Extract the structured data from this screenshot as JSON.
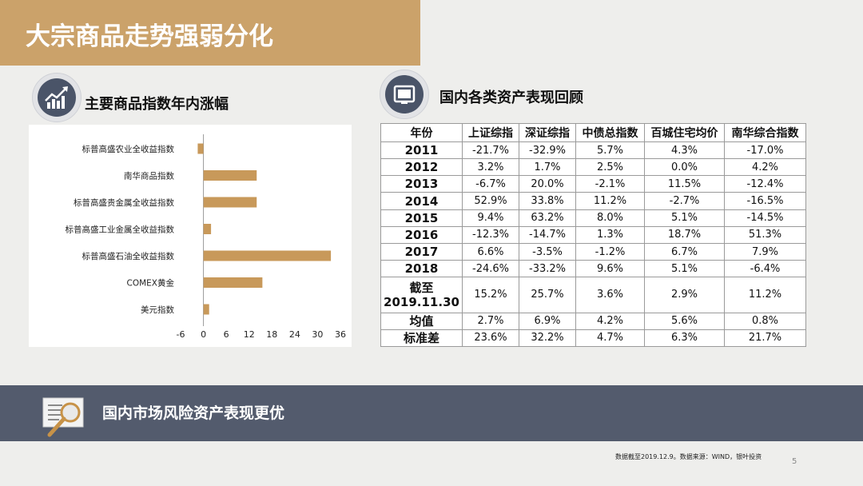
{
  "title": "大宗商品走势强弱分化",
  "left_section": {
    "heading": "主要商品指数年内涨幅",
    "icon": "chart-growth-icon"
  },
  "right_section": {
    "heading": "国内各类资产表现回顾",
    "icon": "monitor-icon"
  },
  "chart_data": {
    "type": "bar",
    "orientation": "horizontal",
    "categories": [
      "标普高盛农业全收益指数",
      "南华商品指数",
      "标普高盛贵金属全收益指数",
      "标普高盛工业金属全收益指数",
      "标普高盛石油全收益指数",
      "COMEX黄金",
      "美元指数"
    ],
    "values": [
      -1.5,
      14.0,
      14.0,
      2.0,
      33.5,
      15.5,
      1.5
    ],
    "xlim": [
      -6,
      36
    ],
    "xticks": [
      "-6",
      "0",
      "6",
      "12",
      "18",
      "24",
      "30",
      "36"
    ],
    "bar_color": "#c8995a",
    "grid": false
  },
  "table": {
    "headers": [
      "年份",
      "上证综指",
      "深证综指",
      "中债总指数",
      "百城住宅均价",
      "南华综合指数"
    ],
    "rows": [
      [
        "2011",
        "-21.7%",
        "-32.9%",
        "5.7%",
        "4.3%",
        "-17.0%"
      ],
      [
        "2012",
        "3.2%",
        "1.7%",
        "2.5%",
        "0.0%",
        "4.2%"
      ],
      [
        "2013",
        "-6.7%",
        "20.0%",
        "-2.1%",
        "11.5%",
        "-12.4%"
      ],
      [
        "2014",
        "52.9%",
        "33.8%",
        "11.2%",
        "-2.7%",
        "-16.5%"
      ],
      [
        "2015",
        "9.4%",
        "63.2%",
        "8.0%",
        "5.1%",
        "-14.5%"
      ],
      [
        "2016",
        "-12.3%",
        "-14.7%",
        "1.3%",
        "18.7%",
        "51.3%"
      ],
      [
        "2017",
        "6.6%",
        "-3.5%",
        "-1.2%",
        "6.7%",
        "7.9%"
      ],
      [
        "2018",
        "-24.6%",
        "-33.2%",
        "9.6%",
        "5.1%",
        "-6.4%"
      ],
      [
        "截至 2019.11.30",
        "15.2%",
        "25.7%",
        "3.6%",
        "2.9%",
        "11.2%"
      ],
      [
        "均值",
        "2.7%",
        "6.9%",
        "4.2%",
        "5.6%",
        "0.8%"
      ],
      [
        "标准差",
        "23.6%",
        "32.2%",
        "4.7%",
        "6.3%",
        "21.7%"
      ]
    ]
  },
  "bottom_banner": {
    "text": "国内市场风险资产表现更优",
    "icon": "magnifier-document-icon"
  },
  "source_note": "数据截至2019.12.9。数据来源：WIND，银叶投资",
  "page_number": "5"
}
